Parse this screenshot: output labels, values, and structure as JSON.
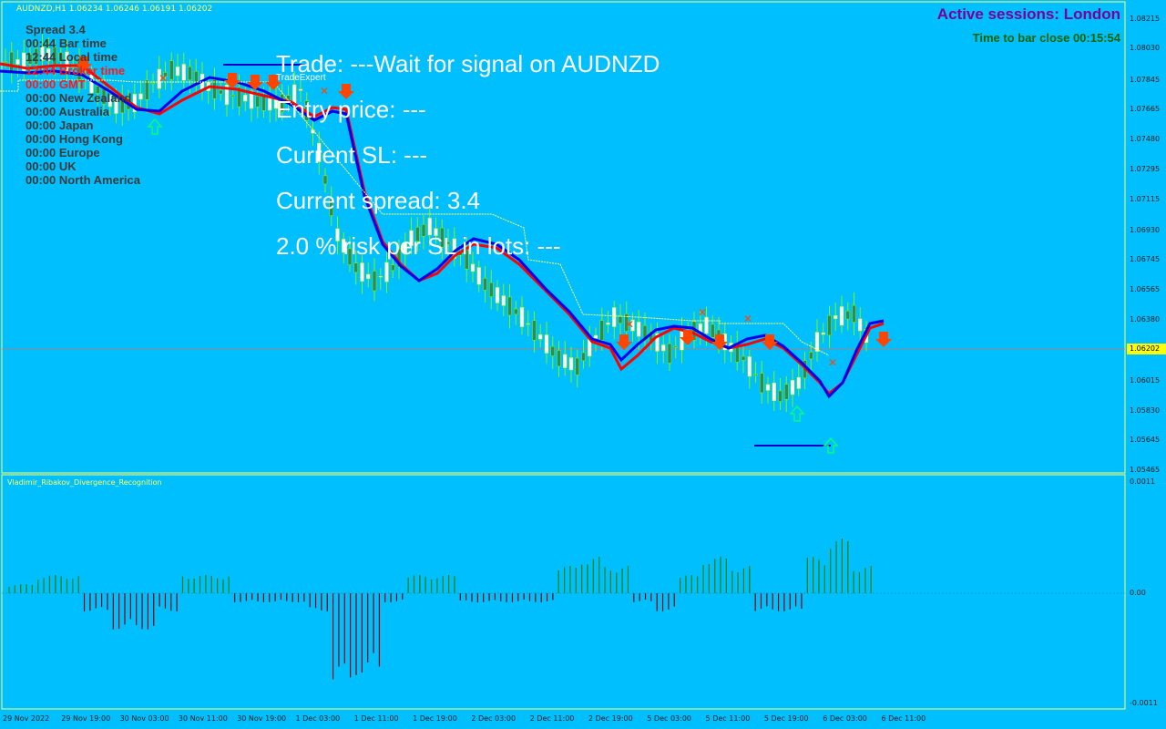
{
  "header": {
    "symbol_line": "AUDNZD,H1  1.06234 1.06246 1.06191 1.06202",
    "indicator_name": "Vladimir_Ribakov_Divergence_Recognition",
    "ea_label": "TradeExpert"
  },
  "info_panel": {
    "rows": [
      {
        "text": "Spread     3.4",
        "color": "dark"
      },
      {
        "text": "00:44 Bar time",
        "color": "dark"
      },
      {
        "text": "12:44 Local time",
        "color": "dark"
      },
      {
        "text": "12:44 Broker time",
        "color": "red"
      },
      {
        "text": "00:00 GMT",
        "color": "red"
      },
      {
        "text": "00:00 New Zealand",
        "color": "dark"
      },
      {
        "text": "00:00 Australia",
        "color": "dark"
      },
      {
        "text": "00:00 Japan",
        "color": "dark"
      },
      {
        "text": "00:00 Hong Kong",
        "color": "dark"
      },
      {
        "text": "00:00 Europe",
        "color": "dark"
      },
      {
        "text": "00:00 UK",
        "color": "dark"
      },
      {
        "text": "00:00 North America",
        "color": "dark"
      }
    ]
  },
  "trade_info": {
    "trade": "Trade: ---Wait for signal on  AUDNZD",
    "entry": "Entry price: ---",
    "sl": "Current SL: ---",
    "spread": "Current spread: 3.4",
    "risk": "2.0 % risk per SL in lots: ---"
  },
  "sessions": {
    "active": "Active sessions:  London",
    "time_to_close": "Time to bar close 00:15:54"
  },
  "price_axis": [
    "1.08215",
    "1.08030",
    "1.07845",
    "1.07665",
    "1.07480",
    "1.07295",
    "1.07115",
    "1.06930",
    "1.06745",
    "1.06565",
    "1.06380",
    "1.06015",
    "1.05830",
    "1.05645",
    "1.05465"
  ],
  "current_price": "1.06202",
  "indicator_axis": [
    "0.0011",
    "0.00",
    "-0.0011"
  ],
  "time_axis": [
    "29 Nov 2022",
    "29 Nov 19:00",
    "30 Nov 03:00",
    "30 Nov 11:00",
    "30 Nov 19:00",
    "1 Dec 03:00",
    "1 Dec 11:00",
    "1 Dec 19:00",
    "2 Dec 03:00",
    "2 Dec 11:00",
    "2 Dec 19:00",
    "5 Dec 03:00",
    "5 Dec 11:00",
    "5 Dec 19:00",
    "6 Dec 03:00",
    "6 Dec 11:00"
  ],
  "colors": {
    "background": "#00bfff",
    "bull_candle": "#ffffff",
    "bear_candle": "#2e8b57",
    "wick": "#7cfc00",
    "ma_red": "#ff0000",
    "ma_blue": "#0000ff",
    "histogram_pos": "#008000",
    "histogram_neg": "#8b0000",
    "current_price_line": "#ff6347",
    "current_price_label": "#ffff00"
  },
  "chart_data": {
    "type": "candlestick",
    "symbol": "AUDNZD",
    "timeframe": "H1",
    "close_path_approx": [
      1.0795,
      1.08,
      1.0798,
      1.079,
      1.0778,
      1.0768,
      1.077,
      1.0782,
      1.079,
      1.0788,
      1.078,
      1.0775,
      1.0773,
      1.077,
      1.077,
      1.0778,
      1.074,
      1.069,
      1.067,
      1.0662,
      1.067,
      1.0688,
      1.0695,
      1.0685,
      1.0675,
      1.066,
      1.065,
      1.064,
      1.0628,
      1.0615,
      1.061,
      1.0628,
      1.064,
      1.0635,
      1.0628,
      1.0618,
      1.063,
      1.0635,
      1.0625,
      1.0615,
      1.06,
      1.0592,
      1.06,
      1.0625,
      1.064,
      1.0642,
      1.0622
    ],
    "indicator_histogram_approx": [
      0.0001,
      0.0002,
      0.0002,
      -0.0002,
      -0.0004,
      -0.0004,
      -0.0002,
      0.0002,
      0.0002,
      -0.0001,
      -0.0001,
      -0.0001,
      -0.0002,
      -0.001,
      -0.0009,
      -0.0001,
      0.0002,
      0.0002,
      -0.0001,
      -0.0001,
      -0.0001,
      -0.0001,
      0.0003,
      0.0004,
      0.0003,
      -0.0001,
      -0.0002,
      0.0002,
      0.0004,
      0.0003,
      -0.0002,
      -0.0002,
      0.0004,
      0.0006,
      0.0003
    ]
  }
}
